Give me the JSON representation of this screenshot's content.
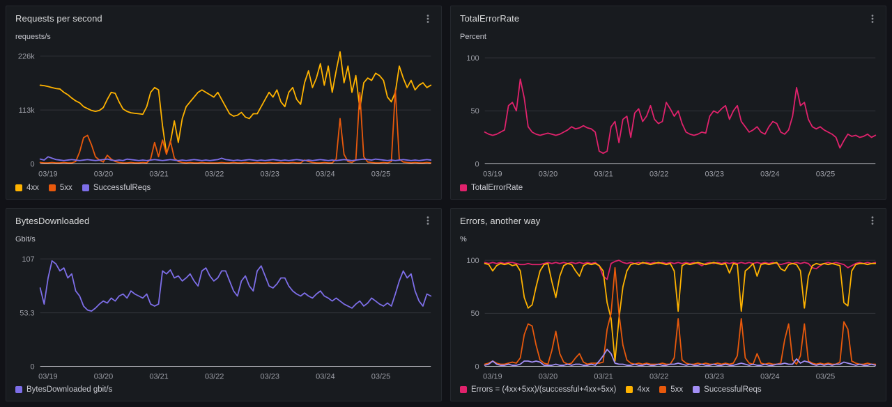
{
  "chart_data": [
    {
      "type": "line",
      "title": "Requests per second",
      "unit": "requests/s",
      "value_scale_note": "values in thousands of requests/s",
      "ylim": [
        0,
        240
      ],
      "grid": true,
      "legend_position": "bottom",
      "yticks": [
        {
          "value": 0,
          "label": "0"
        },
        {
          "value": 113,
          "label": "113k"
        },
        {
          "value": 226,
          "label": "226k"
        }
      ],
      "xticks": [
        {
          "pos": 0.02,
          "label": "03/19"
        },
        {
          "pos": 0.162,
          "label": "03/20"
        },
        {
          "pos": 0.304,
          "label": "03/21"
        },
        {
          "pos": 0.446,
          "label": "03/22"
        },
        {
          "pos": 0.588,
          "label": "03/23"
        },
        {
          "pos": 0.73,
          "label": "03/24"
        },
        {
          "pos": 0.872,
          "label": "03/25"
        }
      ],
      "series": [
        {
          "name": "4xx",
          "label": "4xx",
          "color": "#ffb300",
          "values": [
            165,
            164,
            162,
            160,
            158,
            157,
            150,
            145,
            138,
            132,
            128,
            120,
            116,
            112,
            110,
            112,
            118,
            135,
            150,
            148,
            130,
            115,
            110,
            107,
            106,
            105,
            104,
            120,
            150,
            160,
            155,
            80,
            22,
            45,
            90,
            45,
            95,
            120,
            130,
            140,
            150,
            155,
            150,
            145,
            140,
            150,
            135,
            120,
            105,
            100,
            102,
            108,
            98,
            95,
            105,
            105,
            120,
            135,
            150,
            140,
            155,
            130,
            120,
            150,
            160,
            135,
            125,
            170,
            195,
            160,
            180,
            210,
            165,
            205,
            150,
            195,
            235,
            170,
            205,
            150,
            185,
            115,
            170,
            180,
            175,
            190,
            185,
            175,
            140,
            130,
            150,
            205,
            180,
            160,
            175,
            155,
            165,
            170,
            160,
            165
          ]
        },
        {
          "name": "5xx",
          "label": "5xx",
          "color": "#e8590c",
          "values": [
            3,
            2,
            2,
            3,
            2,
            2,
            3,
            2,
            2,
            5,
            25,
            55,
            60,
            40,
            15,
            8,
            4,
            18,
            10,
            5,
            3,
            2,
            2,
            3,
            2,
            2,
            3,
            2,
            10,
            45,
            15,
            50,
            20,
            48,
            12,
            5,
            3,
            2,
            3,
            2,
            2,
            3,
            2,
            2,
            2,
            2,
            3,
            2,
            2,
            3,
            2,
            2,
            3,
            2,
            2,
            3,
            2,
            2,
            3,
            2,
            2,
            3,
            2,
            2,
            3,
            2,
            2,
            8,
            5,
            3,
            2,
            2,
            3,
            2,
            2,
            10,
            95,
            20,
            5,
            3,
            8,
            150,
            15,
            4,
            3,
            2,
            2,
            3,
            2,
            5,
            155,
            10,
            4,
            3,
            2,
            3,
            2,
            2,
            3,
            2
          ]
        },
        {
          "name": "SuccessfulReqs",
          "label": "SuccessfulReqs",
          "color": "#7d6ee8",
          "values": [
            10,
            8,
            15,
            12,
            9,
            8,
            7,
            8,
            9,
            8,
            7,
            8,
            9,
            8,
            7,
            8,
            9,
            10,
            8,
            7,
            8,
            7,
            10,
            9,
            8,
            7,
            8,
            7,
            8,
            9,
            8,
            7,
            8,
            9,
            8,
            7,
            8,
            7,
            8,
            9,
            8,
            7,
            8,
            7,
            8,
            9,
            12,
            9,
            8,
            7,
            8,
            7,
            8,
            9,
            8,
            7,
            8,
            7,
            8,
            9,
            8,
            7,
            8,
            7,
            8,
            9,
            8,
            7,
            8,
            7,
            8,
            9,
            8,
            7,
            8,
            7,
            8,
            9,
            8,
            7,
            8,
            9,
            10,
            9,
            8,
            10,
            9,
            8,
            7,
            8,
            7,
            8,
            9,
            8,
            7,
            8,
            7,
            8,
            9,
            8
          ]
        }
      ]
    },
    {
      "type": "line",
      "title": "TotalErrorRate",
      "unit": "Percent",
      "ylim": [
        0,
        108
      ],
      "grid": true,
      "legend_position": "bottom",
      "yticks": [
        {
          "value": 0,
          "label": "0"
        },
        {
          "value": 50,
          "label": "50"
        },
        {
          "value": 100,
          "label": "100"
        }
      ],
      "xticks": [
        {
          "pos": 0.02,
          "label": "03/19"
        },
        {
          "pos": 0.162,
          "label": "03/20"
        },
        {
          "pos": 0.304,
          "label": "03/21"
        },
        {
          "pos": 0.446,
          "label": "03/22"
        },
        {
          "pos": 0.588,
          "label": "03/23"
        },
        {
          "pos": 0.73,
          "label": "03/24"
        },
        {
          "pos": 0.872,
          "label": "03/25"
        }
      ],
      "series": [
        {
          "name": "TotalErrorRate",
          "label": "TotalErrorRate",
          "color": "#e0226c",
          "values": [
            30,
            28,
            27,
            28,
            30,
            32,
            55,
            58,
            50,
            80,
            62,
            35,
            30,
            28,
            27,
            28,
            29,
            28,
            27,
            28,
            30,
            32,
            35,
            33,
            34,
            36,
            34,
            33,
            30,
            12,
            10,
            12,
            35,
            40,
            20,
            42,
            45,
            25,
            48,
            52,
            40,
            45,
            55,
            42,
            38,
            40,
            58,
            52,
            45,
            50,
            38,
            30,
            28,
            27,
            28,
            30,
            29,
            45,
            50,
            48,
            52,
            55,
            42,
            50,
            55,
            40,
            35,
            30,
            32,
            35,
            30,
            28,
            35,
            40,
            38,
            30,
            28,
            32,
            45,
            72,
            55,
            58,
            42,
            35,
            33,
            35,
            32,
            30,
            28,
            25,
            15,
            22,
            28,
            26,
            27,
            25,
            26,
            28,
            25,
            27
          ]
        }
      ]
    },
    {
      "type": "line",
      "title": "BytesDownloaded",
      "unit": "Gbit/s",
      "ylim": [
        0,
        114
      ],
      "grid": true,
      "legend_position": "bottom",
      "yticks": [
        {
          "value": 0,
          "label": "0"
        },
        {
          "value": 53.3,
          "label": "53.3"
        },
        {
          "value": 107,
          "label": "107"
        }
      ],
      "xticks": [
        {
          "pos": 0.02,
          "label": "03/19"
        },
        {
          "pos": 0.162,
          "label": "03/20"
        },
        {
          "pos": 0.304,
          "label": "03/21"
        },
        {
          "pos": 0.446,
          "label": "03/22"
        },
        {
          "pos": 0.588,
          "label": "03/23"
        },
        {
          "pos": 0.73,
          "label": "03/24"
        },
        {
          "pos": 0.872,
          "label": "03/25"
        }
      ],
      "series": [
        {
          "name": "BytesDownloaded",
          "label": "BytesDownloaded gbit/s",
          "color": "#7d6ee8",
          "values": [
            78,
            62,
            88,
            105,
            102,
            95,
            98,
            88,
            92,
            75,
            70,
            60,
            56,
            55,
            58,
            62,
            65,
            63,
            68,
            65,
            70,
            72,
            68,
            75,
            72,
            70,
            68,
            72,
            62,
            60,
            62,
            95,
            92,
            96,
            88,
            90,
            85,
            88,
            92,
            85,
            80,
            95,
            98,
            90,
            85,
            88,
            95,
            95,
            85,
            75,
            70,
            85,
            90,
            80,
            75,
            95,
            100,
            90,
            80,
            78,
            82,
            88,
            88,
            80,
            75,
            72,
            70,
            73,
            70,
            68,
            72,
            75,
            70,
            68,
            65,
            68,
            65,
            62,
            60,
            58,
            62,
            65,
            60,
            63,
            68,
            65,
            62,
            60,
            63,
            60,
            72,
            85,
            95,
            88,
            92,
            75,
            65,
            60,
            72,
            70
          ]
        }
      ]
    },
    {
      "type": "line",
      "title": "Errors, another way",
      "unit": "%",
      "ylim": [
        0,
        108
      ],
      "grid": true,
      "legend_position": "bottom",
      "yticks": [
        {
          "value": 0,
          "label": "0"
        },
        {
          "value": 50,
          "label": "50"
        },
        {
          "value": 100,
          "label": "100"
        }
      ],
      "xticks": [
        {
          "pos": 0.02,
          "label": "03/19"
        },
        {
          "pos": 0.162,
          "label": "03/20"
        },
        {
          "pos": 0.304,
          "label": "03/21"
        },
        {
          "pos": 0.446,
          "label": "03/22"
        },
        {
          "pos": 0.588,
          "label": "03/23"
        },
        {
          "pos": 0.73,
          "label": "03/24"
        },
        {
          "pos": 0.872,
          "label": "03/25"
        }
      ],
      "series": [
        {
          "name": "Errors",
          "label": "Errors = (4xx+5xx)/(successful+4xx+5xx)",
          "color": "#e0226c",
          "values": [
            98,
            97,
            98,
            97,
            98,
            97,
            98,
            98,
            97,
            96,
            96,
            97,
            96,
            96,
            96,
            97,
            98,
            97,
            98,
            97,
            98,
            97,
            98,
            97,
            98,
            97,
            98,
            97,
            98,
            95,
            85,
            82,
            97,
            99,
            100,
            98,
            97,
            98,
            97,
            98,
            97,
            98,
            97,
            98,
            97,
            98,
            97,
            98,
            97,
            98,
            97,
            98,
            97,
            98,
            97,
            95,
            97,
            98,
            97,
            98,
            97,
            98,
            97,
            98,
            97,
            98,
            97,
            98,
            97,
            98,
            97,
            98,
            97,
            98,
            97,
            96,
            97,
            98,
            97,
            98,
            97,
            98,
            97,
            93,
            92,
            95,
            97,
            98,
            97,
            98,
            97,
            96,
            93,
            95,
            97,
            98,
            97,
            98,
            97,
            98
          ]
        },
        {
          "name": "4xx",
          "label": "4xx",
          "color": "#ffb300",
          "values": [
            97,
            96,
            90,
            95,
            97,
            96,
            97,
            95,
            96,
            90,
            65,
            55,
            58,
            75,
            90,
            96,
            97,
            80,
            65,
            85,
            95,
            97,
            96,
            90,
            85,
            95,
            97,
            96,
            97,
            95,
            90,
            60,
            45,
            5,
            45,
            75,
            90,
            96,
            97,
            96,
            98,
            97,
            96,
            97,
            98,
            97,
            96,
            97,
            90,
            52,
            95,
            97,
            96,
            97,
            98,
            97,
            96,
            97,
            98,
            97,
            96,
            97,
            88,
            97,
            96,
            52,
            90,
            93,
            97,
            85,
            96,
            97,
            96,
            97,
            98,
            92,
            90,
            96,
            97,
            96,
            90,
            55,
            85,
            95,
            97,
            96,
            97,
            96,
            97,
            96,
            95,
            60,
            57,
            90,
            96,
            97,
            97,
            96,
            97,
            97
          ]
        },
        {
          "name": "5xx",
          "label": "5xx",
          "color": "#e8590c",
          "values": [
            2,
            3,
            5,
            3,
            2,
            2,
            3,
            4,
            3,
            8,
            30,
            40,
            38,
            20,
            6,
            3,
            2,
            15,
            33,
            12,
            4,
            2,
            3,
            8,
            12,
            4,
            2,
            3,
            3,
            3,
            4,
            35,
            50,
            93,
            50,
            20,
            6,
            3,
            2,
            3,
            2,
            3,
            2,
            2,
            2,
            3,
            2,
            2,
            8,
            45,
            6,
            3,
            2,
            2,
            3,
            2,
            3,
            2,
            2,
            3,
            2,
            3,
            2,
            3,
            10,
            45,
            8,
            3,
            2,
            12,
            3,
            2,
            3,
            2,
            2,
            3,
            25,
            40,
            6,
            2,
            10,
            40,
            5,
            3,
            2,
            3,
            2,
            3,
            2,
            2,
            4,
            42,
            35,
            5,
            3,
            2,
            2,
            3,
            2,
            2
          ]
        },
        {
          "name": "SuccessfulReqs",
          "label": "SuccessfulReqs",
          "color": "#a38ff5",
          "values": [
            1,
            2,
            5,
            2,
            1,
            1,
            2,
            1,
            1,
            2,
            5,
            5,
            4,
            5,
            4,
            1,
            1,
            1,
            2,
            1,
            1,
            2,
            1,
            2,
            2,
            1,
            1,
            2,
            1,
            5,
            10,
            16,
            12,
            3,
            2,
            2,
            1,
            1,
            2,
            1,
            1,
            2,
            1,
            1,
            2,
            1,
            1,
            2,
            2,
            3,
            2,
            1,
            2,
            1,
            1,
            2,
            1,
            1,
            2,
            1,
            1,
            2,
            1,
            1,
            2,
            3,
            2,
            1,
            2,
            1,
            1,
            2,
            1,
            1,
            2,
            2,
            3,
            2,
            2,
            7,
            3,
            5,
            4,
            2,
            1,
            2,
            1,
            2,
            1,
            2,
            2,
            4,
            3,
            2,
            1,
            2,
            1,
            1,
            2,
            1
          ]
        }
      ]
    }
  ],
  "theme": {
    "page_bg": "#111217",
    "panel_bg": "#181b1f",
    "grid_line": "rgba(204,204,220,0.15)",
    "axis_line": "#c7c8ce",
    "tick_text": "#9d9fa7"
  }
}
